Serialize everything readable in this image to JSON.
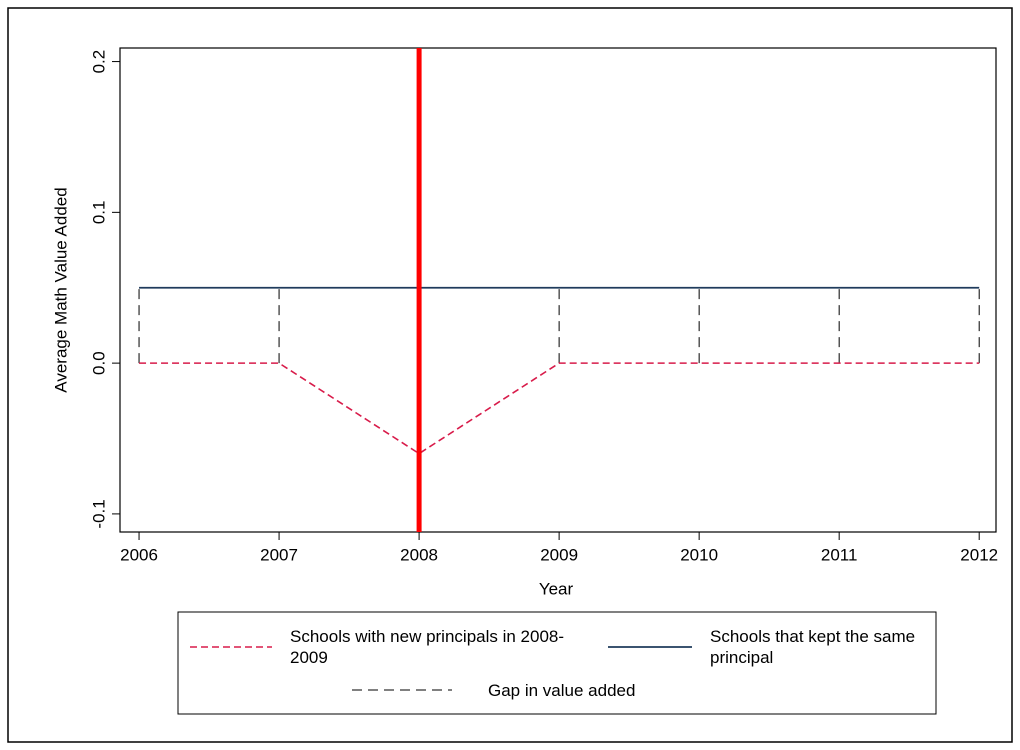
{
  "chart_data": {
    "type": "line",
    "x_label": "Year",
    "y_label": "Average Math Value Added",
    "x": [
      2006,
      2007,
      2008,
      2009,
      2010,
      2011,
      2012
    ],
    "series": [
      {
        "name": "Schools with new principals in 2008-2009",
        "color": "#d81b4a",
        "dash": true,
        "values": [
          0,
          0,
          -0.06,
          0,
          0,
          0,
          0
        ]
      },
      {
        "name": "Schools that kept the same principal",
        "color": "#1f3b5c",
        "dash": false,
        "values": [
          0.05,
          0.05,
          0.05,
          0.05,
          0.05,
          0.05,
          0.05
        ]
      }
    ],
    "gap_label": "Gap in value added",
    "gap_color": "#000000",
    "vline": 2008,
    "vline_color": "#ff0000",
    "xlim": [
      2005.864,
      2012.12
    ],
    "xticks": [
      2006,
      2007,
      2008,
      2009,
      2010,
      2011,
      2012
    ],
    "ylim": [
      -0.112,
      0.209
    ],
    "yticks": [
      0.2,
      0.1,
      {
        "value": 0,
        "label": "0.0"
      },
      -0.1
    ]
  }
}
